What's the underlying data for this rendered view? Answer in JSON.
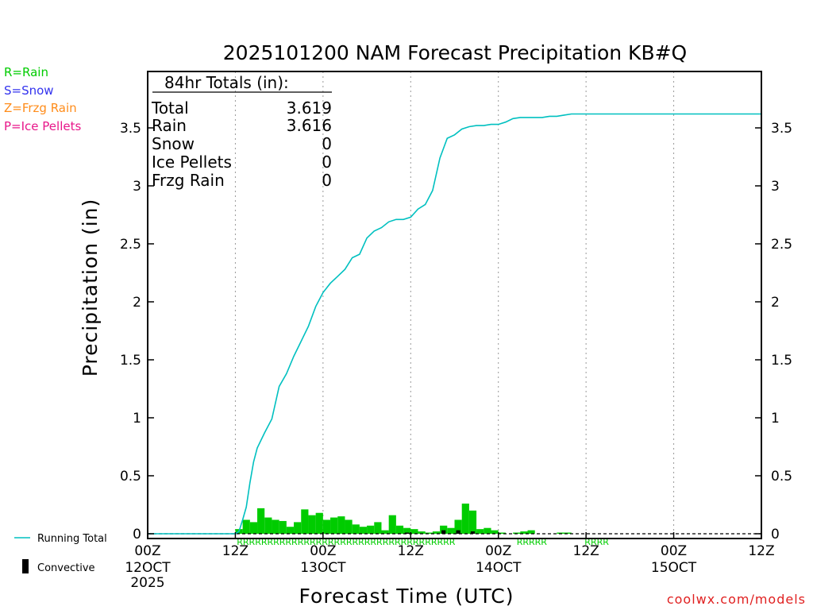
{
  "chart_data": {
    "type": "bar",
    "title": "2025101200 NAM Forecast Precipitation KB#Q",
    "xlabel": "Forecast Time (UTC)",
    "ylabel": "Precipitation (in)",
    "ylim": [
      0,
      4
    ],
    "y_ticks": [
      0,
      0.5,
      1,
      1.5,
      2,
      2.5,
      3,
      3.5
    ],
    "y_tick_labels": [
      "0",
      "0.5",
      "1",
      "1.5",
      "2",
      "2.5",
      "3",
      "3.5"
    ],
    "x_range_hours": [
      0,
      84
    ],
    "x_ticks": [
      {
        "hour": 0,
        "label": "00Z",
        "sub": "12OCT",
        "sub2": "2025"
      },
      {
        "hour": 12,
        "label": "12Z",
        "sub": "",
        "sub2": ""
      },
      {
        "hour": 24,
        "label": "00Z",
        "sub": "13OCT",
        "sub2": ""
      },
      {
        "hour": 36,
        "label": "12Z",
        "sub": "",
        "sub2": ""
      },
      {
        "hour": 48,
        "label": "00Z",
        "sub": "14OCT",
        "sub2": ""
      },
      {
        "hour": 60,
        "label": "12Z",
        "sub": "",
        "sub2": ""
      },
      {
        "hour": 72,
        "label": "00Z",
        "sub": "15OCT",
        "sub2": ""
      },
      {
        "hour": 84,
        "label": "12Z",
        "sub": "",
        "sub2": ""
      }
    ],
    "gridlines_hours": [
      12,
      24,
      36,
      48,
      60,
      72
    ],
    "legend_types": [
      {
        "label": "R=Rain",
        "color": "#00cc00"
      },
      {
        "label": "S=Snow",
        "color": "#3333ee"
      },
      {
        "label": "Z=Frzg Rain",
        "color": "#ff8c1a"
      },
      {
        "label": "P=Ice Pellets",
        "color": "#e8178a"
      }
    ],
    "legend_series": {
      "running_total_label": "Running Total",
      "convective_label": "Convective",
      "running_total_color": "#00c0c0",
      "convective_color": "#000000"
    },
    "totals_box": {
      "header": "84hr Totals (in):",
      "rows": [
        {
          "label": "Total",
          "value": "3.619"
        },
        {
          "label": "Rain",
          "value": "3.616"
        },
        {
          "label": "Snow",
          "value": "0"
        },
        {
          "label": "Ice Pellets",
          "value": "0"
        },
        {
          "label": "Frzg Rain",
          "value": "0"
        }
      ]
    },
    "precip_type_strips": [
      {
        "label": "RRRRRRRRRRRRRRRRRRRRRRRRRRRRRRRRRRRR",
        "color": "#00cc00",
        "start_hour": 12.2
      },
      {
        "label": "RRRRR",
        "color": "#00cc00",
        "start_hour": 50.5
      },
      {
        "label": "RRRR",
        "color": "#00cc00",
        "start_hour": 59.8
      }
    ],
    "running_total": {
      "name": "Running Total",
      "x": [
        0,
        12,
        12.5,
        13,
        13.5,
        14,
        14.5,
        15,
        16,
        17,
        18,
        19,
        20,
        21,
        22,
        23,
        24,
        25,
        26,
        27,
        28,
        29,
        30,
        31,
        32,
        33,
        34,
        35,
        36,
        37,
        38,
        39,
        40,
        41,
        42,
        43,
        44,
        45,
        46,
        47,
        48,
        49,
        50,
        51,
        52,
        53,
        54,
        55,
        56,
        57,
        58,
        59,
        60,
        61,
        62,
        84
      ],
      "values": [
        0,
        0,
        0.02,
        0.12,
        0.23,
        0.44,
        0.62,
        0.74,
        0.87,
        0.99,
        1.27,
        1.38,
        1.53,
        1.66,
        1.79,
        1.96,
        2.08,
        2.16,
        2.22,
        2.28,
        2.38,
        2.41,
        2.55,
        2.61,
        2.64,
        2.69,
        2.71,
        2.71,
        2.73,
        2.8,
        2.84,
        2.96,
        3.24,
        3.41,
        3.44,
        3.49,
        3.51,
        3.52,
        3.52,
        3.53,
        3.53,
        3.55,
        3.58,
        3.59,
        3.59,
        3.59,
        3.59,
        3.6,
        3.6,
        3.61,
        3.62,
        3.62,
        3.62,
        3.62,
        3.62,
        3.62
      ]
    },
    "hourly_precip": {
      "name": "Rain",
      "x": [
        12,
        13,
        14,
        15,
        16,
        17,
        18,
        19,
        20,
        21,
        22,
        23,
        24,
        25,
        26,
        27,
        28,
        29,
        30,
        31,
        32,
        33,
        34,
        35,
        36,
        37,
        38,
        39,
        40,
        41,
        42,
        43,
        44,
        45,
        46,
        47,
        48,
        49,
        50,
        51,
        52,
        53,
        54,
        55,
        56,
        57,
        58,
        59,
        60,
        61,
        62,
        63,
        64,
        65,
        66,
        67,
        68,
        69,
        70,
        71,
        72,
        73,
        74,
        75,
        76,
        77,
        78,
        79,
        80,
        81,
        82,
        83
      ],
      "values": [
        0.04,
        0.12,
        0.1,
        0.22,
        0.14,
        0.12,
        0.11,
        0.06,
        0.1,
        0.21,
        0.16,
        0.18,
        0.12,
        0.14,
        0.15,
        0.12,
        0.08,
        0.06,
        0.07,
        0.1,
        0.03,
        0.16,
        0.07,
        0.05,
        0.04,
        0.02,
        0.01,
        0.02,
        0.07,
        0.05,
        0.12,
        0.26,
        0.2,
        0.04,
        0.05,
        0.03,
        0.01,
        0.0,
        0.01,
        0.02,
        0.03,
        0.0,
        0.0,
        0.0,
        0.01,
        0.01,
        0.0,
        0.0,
        0.0,
        0.0,
        0.0,
        0.0,
        0.0,
        0.0,
        0.0,
        0.0,
        0.0,
        0.0,
        0.0,
        0.0,
        0.0,
        0.0,
        0.0,
        0.0,
        0.0,
        0.0,
        0.0,
        0.0,
        0.0,
        0.0,
        0.0,
        0.0
      ]
    },
    "convective_precip": {
      "name": "Convective",
      "x": [
        35,
        40,
        42,
        44
      ],
      "values": [
        0.01,
        0.03,
        0.03,
        0.02
      ]
    },
    "credit": "coolwx.com/models"
  }
}
